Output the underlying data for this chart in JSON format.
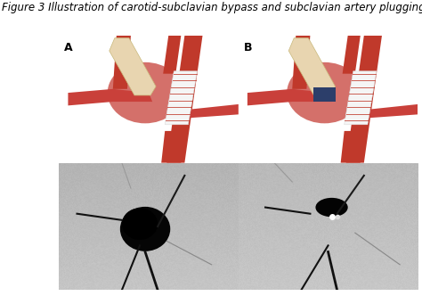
{
  "title": "Figure 3 Illustration of carotid-subclavian bypass and subclavian artery plugging",
  "title_fontsize": 8.5,
  "title_style": "italic",
  "fig_bg": "#ffffff",
  "border_color": "#aaaaaa",
  "panel_labels": [
    "A",
    "B"
  ],
  "label_fontsize": 9,
  "label_fontweight": "bold",
  "red_dark": "#c0392b",
  "red_mid": "#c9403a",
  "aneurysm_color": "#d4706a",
  "graft_color": "#e8d5b0",
  "stent_white": "#f0f0f0",
  "plug_color": "#2c3e6a",
  "xray_bg": "#b0b0b0",
  "xray_dark": "#080808",
  "xray_mid": "#444444"
}
